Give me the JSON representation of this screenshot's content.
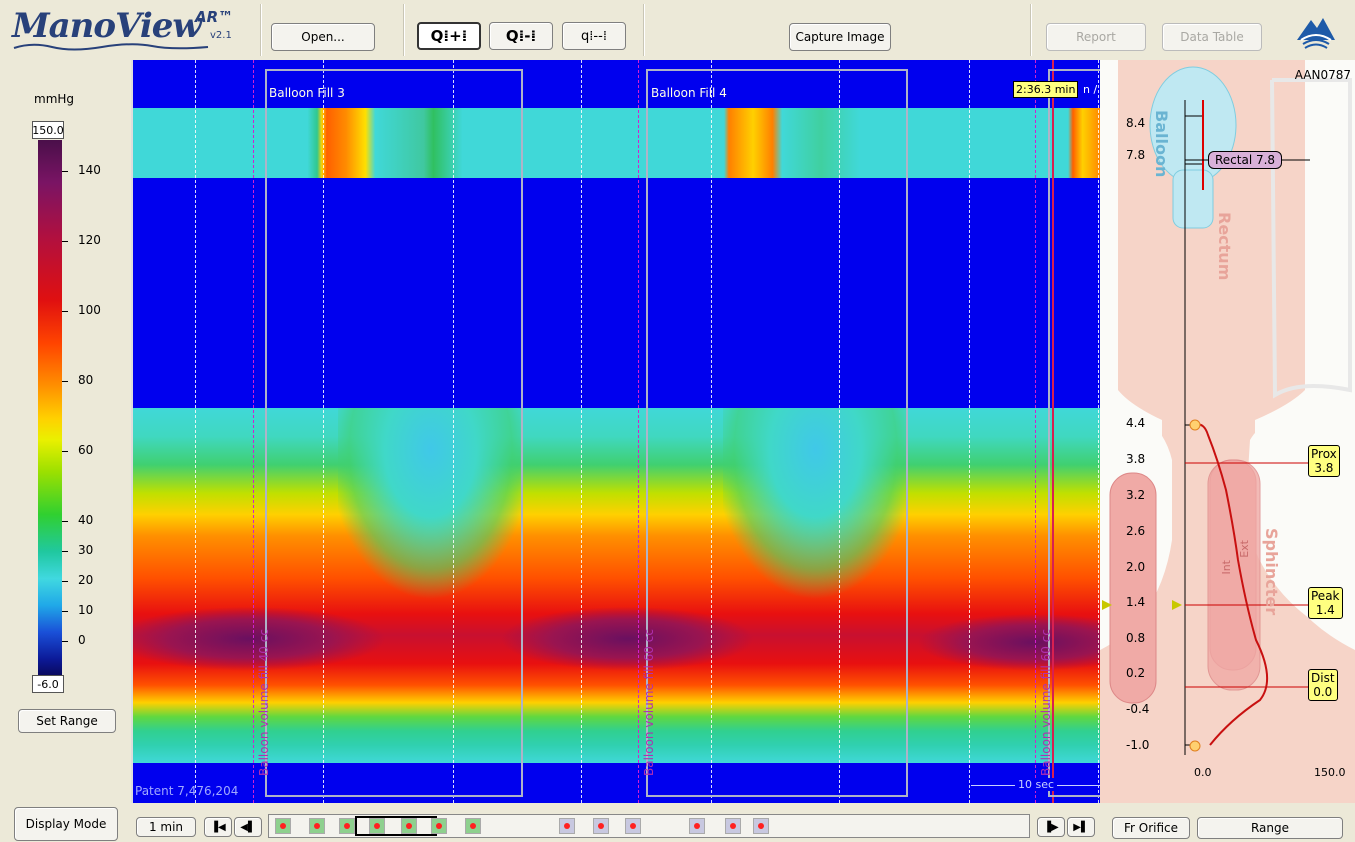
{
  "app": {
    "name": "ManoView",
    "superscript": "AR™",
    "version": "v2.1"
  },
  "toolbar": {
    "open_label": "Open...",
    "zoom_in_label": "Q⁞+⁞",
    "zoom_fit_label": "Q⁞-⁞",
    "zoom_out_label": "q⁞--⁞",
    "capture_label": "Capture Image",
    "report_label": "Report",
    "datatable_label": "Data Table"
  },
  "scale": {
    "unit": "mmHg",
    "max_value": "150.0",
    "min_value": "-6.0",
    "ticks": [
      "140",
      "120",
      "100",
      "80",
      "60",
      "40",
      "30",
      "20",
      "10",
      "0"
    ],
    "set_range_label": "Set Range"
  },
  "plot": {
    "fills": [
      "Balloon Fill 3",
      "Balloon Fill 4"
    ],
    "markers": [
      "Balloon volume fill 40 cc",
      "Balloon volume fill 60 cc",
      "Balloon volume fill 60 cc"
    ],
    "time_flag": "2:36.3 min",
    "time_flag_suffix": "n /",
    "patent": "Patent 7,476,204",
    "scale_bar": "10 sec"
  },
  "diagram": {
    "patient_id": "AAN0787",
    "balloon_label": "Balloon",
    "rectum_label": "Rectum",
    "sphincter_label": "Sphincter",
    "int_label": "Int",
    "ext_label": "Ext",
    "y_ticks": [
      "8.4",
      "7.8",
      "4.4",
      "3.8",
      "3.2",
      "2.6",
      "2.0",
      "1.4",
      "0.8",
      "0.2",
      "-0.4",
      "-1.0"
    ],
    "x_min": "0.0",
    "x_max": "150.0",
    "rectal_tag": "Rectal 7.8",
    "prox_tag": "Prox\n3.8",
    "peak_tag": "Peak\n1.4",
    "dist_tag": "Dist\n0.0"
  },
  "bottom": {
    "display_mode_label": "Display Mode",
    "interval_label": "1 min",
    "fr_orifice_label": "Fr Orifice",
    "range_label": "Range"
  }
}
